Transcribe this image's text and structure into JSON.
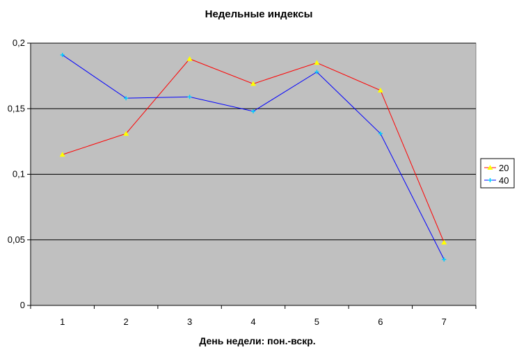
{
  "chart_data": {
    "type": "line",
    "title": "Недельные индексы",
    "xlabel": "День недели: пон.-вскр.",
    "ylabel": "",
    "categories": [
      "1",
      "2",
      "3",
      "4",
      "5",
      "6",
      "7"
    ],
    "ylim": [
      0,
      0.2
    ],
    "yticks": [
      0,
      0.05,
      0.1,
      0.15,
      0.2
    ],
    "ytick_labels": [
      "0",
      "0,05",
      "0,1",
      "0,15",
      "0,2"
    ],
    "grid": "horizontal",
    "legend_position": "right",
    "plot_background": "#c0c0c0",
    "series": [
      {
        "name": "20",
        "color": "#ff0000",
        "marker": "triangle",
        "marker_color": "#ffff00",
        "values": [
          0.115,
          0.131,
          0.188,
          0.169,
          0.185,
          0.164,
          0.048
        ]
      },
      {
        "name": "40",
        "color": "#0000ff",
        "marker": "star",
        "marker_color": "#00ccff",
        "values": [
          0.191,
          0.158,
          0.159,
          0.148,
          0.178,
          0.131,
          0.035
        ]
      }
    ]
  }
}
